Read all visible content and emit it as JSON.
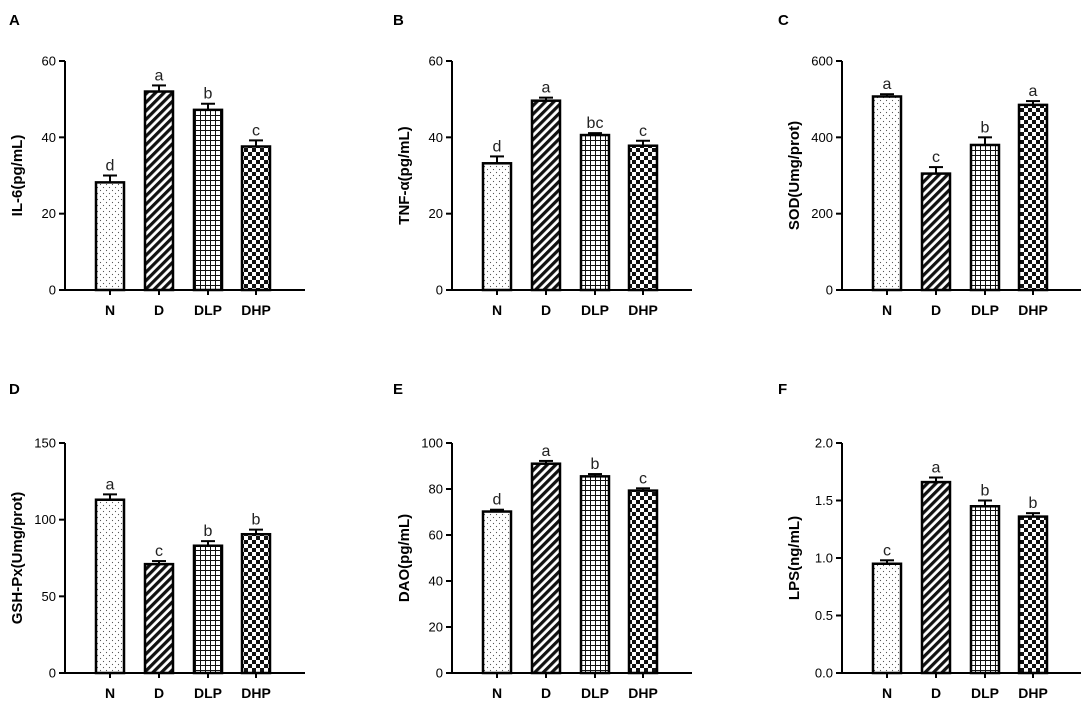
{
  "figure": {
    "title": ""
  },
  "chart_data": [
    {
      "type": "bar",
      "panel": "A",
      "title": "",
      "ylabel": "IL-6(pg/mL)",
      "xlabel": "",
      "categories": [
        "N",
        "D",
        "DLP",
        "DHP"
      ],
      "values": [
        28.2,
        52.0,
        47.2,
        37.6
      ],
      "errors": [
        1.8,
        1.6,
        1.6,
        1.6
      ],
      "significance": [
        "d",
        "a",
        "b",
        "c"
      ],
      "ylim": [
        0,
        60
      ],
      "yticks": [
        0,
        20,
        40,
        60
      ],
      "ytick_labels": [
        "0",
        "20",
        "40",
        "60"
      ]
    },
    {
      "type": "bar",
      "panel": "B",
      "title": "",
      "ylabel": "TNF-α(pg/mL)",
      "xlabel": "",
      "categories": [
        "N",
        "D",
        "DLP",
        "DHP"
      ],
      "values": [
        33.2,
        49.6,
        40.6,
        37.8
      ],
      "errors": [
        1.8,
        0.8,
        0.5,
        1.3
      ],
      "significance": [
        "d",
        "a",
        "bc",
        "c"
      ],
      "ylim": [
        0,
        60
      ],
      "yticks": [
        0,
        20,
        40,
        60
      ],
      "ytick_labels": [
        "0",
        "20",
        "40",
        "60"
      ]
    },
    {
      "type": "bar",
      "panel": "C",
      "title": "",
      "ylabel": "SOD(Umg/prot)",
      "xlabel": "",
      "categories": [
        "N",
        "D",
        "DLP",
        "DHP"
      ],
      "values": [
        507,
        305,
        380,
        485
      ],
      "errors": [
        6,
        17,
        20,
        10
      ],
      "significance": [
        "a",
        "c",
        "b",
        "a"
      ],
      "ylim": [
        0,
        600
      ],
      "yticks": [
        0,
        200,
        400,
        600
      ],
      "ytick_labels": [
        "0",
        "200",
        "400",
        "600"
      ]
    },
    {
      "type": "bar",
      "panel": "D",
      "title": "",
      "ylabel": "GSH-Px(Umg/prot)",
      "xlabel": "",
      "categories": [
        "N",
        "D",
        "DLP",
        "DHP"
      ],
      "values": [
        113,
        71,
        83,
        90.5
      ],
      "errors": [
        3.5,
        2.0,
        3.0,
        3.0
      ],
      "significance": [
        "a",
        "c",
        "b",
        "b"
      ],
      "ylim": [
        0,
        150
      ],
      "yticks": [
        0,
        50,
        100,
        150
      ],
      "ytick_labels": [
        "0",
        "50",
        "100",
        "150"
      ]
    },
    {
      "type": "bar",
      "panel": "E",
      "title": "",
      "ylabel": "DAO(pg/mL)",
      "xlabel": "",
      "categories": [
        "N",
        "D",
        "DLP",
        "DHP"
      ],
      "values": [
        70.2,
        91.0,
        85.5,
        79.3
      ],
      "errors": [
        0.8,
        1.2,
        1.0,
        1.0
      ],
      "significance": [
        "d",
        "a",
        "b",
        "c"
      ],
      "ylim": [
        0,
        100
      ],
      "yticks": [
        0,
        20,
        40,
        60,
        80,
        100
      ],
      "ytick_labels": [
        "0",
        "20",
        "40",
        "60",
        "80",
        "100"
      ]
    },
    {
      "type": "bar",
      "panel": "F",
      "title": "",
      "ylabel": "LPS(ng/mL)",
      "xlabel": "",
      "categories": [
        "N",
        "D",
        "DLP",
        "DHP"
      ],
      "values": [
        0.95,
        1.66,
        1.45,
        1.36
      ],
      "errors": [
        0.03,
        0.04,
        0.05,
        0.03
      ],
      "significance": [
        "c",
        "a",
        "b",
        "b"
      ],
      "ylim": [
        0,
        2.0
      ],
      "yticks": [
        0,
        0.5,
        1.0,
        1.5,
        2.0
      ],
      "ytick_labels": [
        "0.0",
        "0.5",
        "1.0",
        "1.5",
        "2.0"
      ]
    }
  ],
  "style": {
    "bar_edge": "#000000",
    "bar_fill": "#ffffff",
    "pattern_ink": "#000000",
    "text": "#000000"
  }
}
